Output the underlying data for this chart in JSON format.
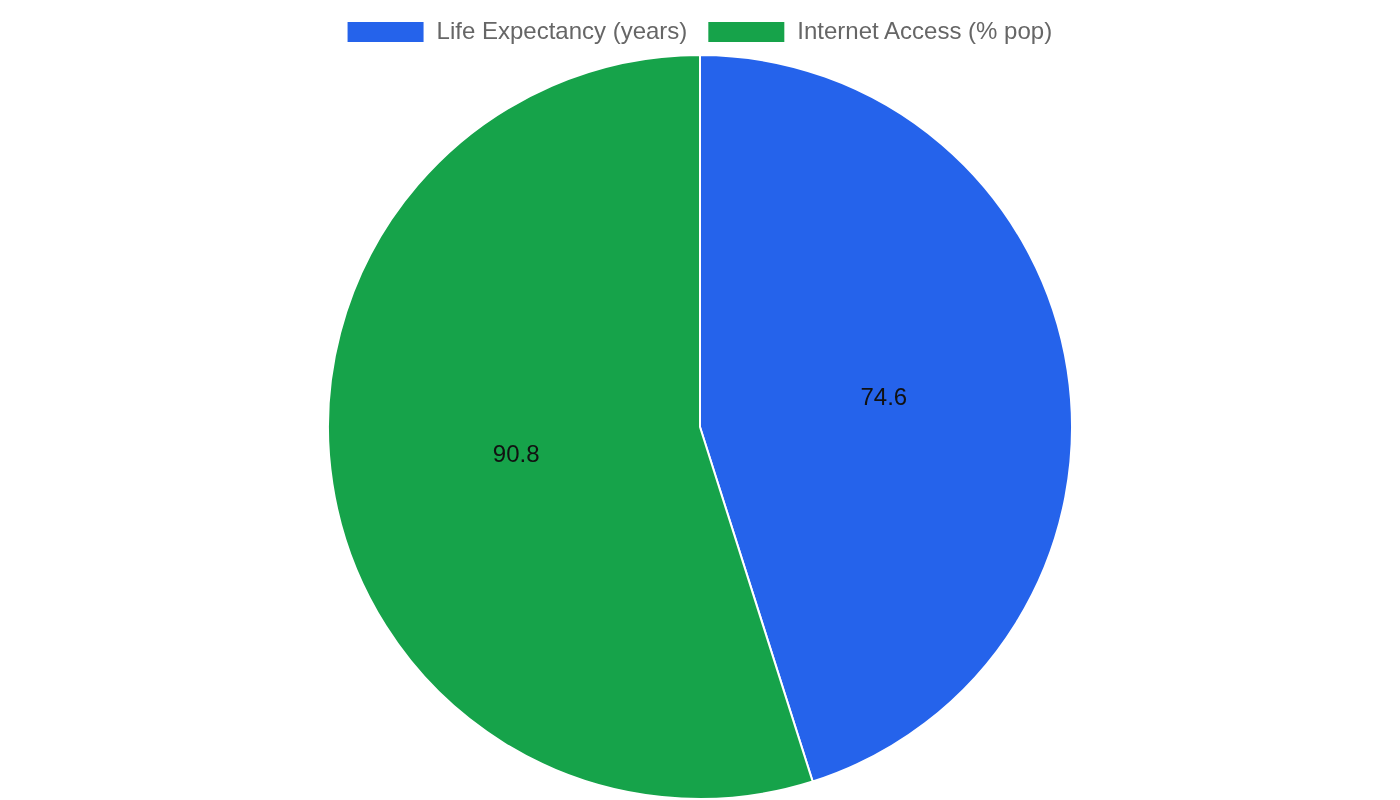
{
  "chart_data": {
    "type": "pie",
    "categories": [
      "Life Expectancy (years)",
      "Internet Access (% pop)"
    ],
    "values": [
      74.6,
      90.8
    ],
    "colors": [
      "#2563eb",
      "#16a34a"
    ],
    "data_labels": true,
    "legend": "top"
  }
}
